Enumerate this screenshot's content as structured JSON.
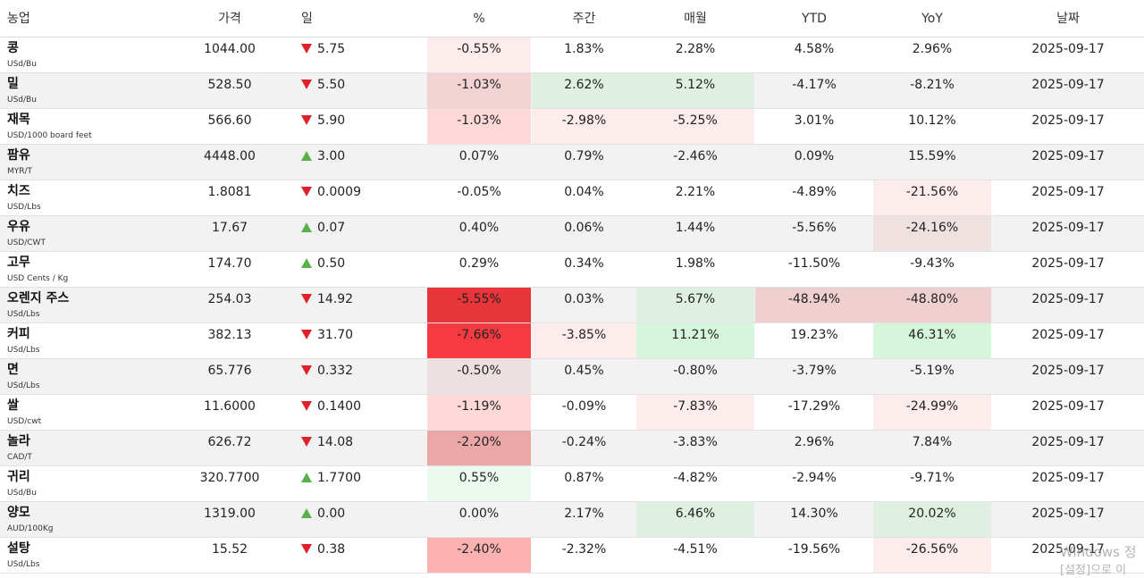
{
  "headers": {
    "name": "농업",
    "price": "가격",
    "day": "일",
    "pct": "%",
    "weekly": "주간",
    "monthly": "매월",
    "ytd": "YTD",
    "yoy": "YoY",
    "date": "날짜"
  },
  "rows": [
    {
      "name": "콩",
      "unit": "USd/Bu",
      "price": "1044.00",
      "dir": "down",
      "day": "5.75",
      "pct": "-0.55%",
      "weekly": "1.83%",
      "monthly": "2.28%",
      "ytd": "4.58%",
      "yoy": "2.96%",
      "date": "2025-09-17",
      "colors": {
        "pct": "#fdecec"
      }
    },
    {
      "name": "밀",
      "unit": "USd/Bu",
      "price": "528.50",
      "dir": "down",
      "day": "5.50",
      "pct": "-1.03%",
      "weekly": "2.62%",
      "monthly": "5.12%",
      "ytd": "-4.17%",
      "yoy": "-8.21%",
      "date": "2025-09-17",
      "colors": {
        "pct": "#f1d3d3",
        "weekly": "#dff0e2",
        "monthly": "#dff0e2"
      }
    },
    {
      "name": "재목",
      "unit": "USD/1000 board feet",
      "price": "566.60",
      "dir": "down",
      "day": "5.90",
      "pct": "-1.03%",
      "weekly": "-2.98%",
      "monthly": "-5.25%",
      "ytd": "3.01%",
      "yoy": "10.12%",
      "date": "2025-09-17",
      "colors": {
        "pct": "#fdd8d8",
        "weekly": "#fdecec",
        "monthly": "#fdecec"
      }
    },
    {
      "name": "팜유",
      "unit": "MYR/T",
      "price": "4448.00",
      "dir": "up",
      "day": "3.00",
      "pct": "0.07%",
      "weekly": "0.79%",
      "monthly": "-2.46%",
      "ytd": "0.09%",
      "yoy": "15.59%",
      "date": "2025-09-17",
      "colors": {}
    },
    {
      "name": "치즈",
      "unit": "USD/Lbs",
      "price": "1.8081",
      "dir": "down",
      "day": "0.0009",
      "pct": "-0.05%",
      "weekly": "0.04%",
      "monthly": "2.21%",
      "ytd": "-4.89%",
      "yoy": "-21.56%",
      "date": "2025-09-17",
      "colors": {
        "yoy": "#fdecec"
      }
    },
    {
      "name": "우유",
      "unit": "USD/CWT",
      "price": "17.67",
      "dir": "up",
      "day": "0.07",
      "pct": "0.40%",
      "weekly": "0.06%",
      "monthly": "1.44%",
      "ytd": "-5.56%",
      "yoy": "-24.16%",
      "date": "2025-09-17",
      "colors": {
        "yoy": "#f0e1e1"
      }
    },
    {
      "name": "고무",
      "unit": "USD Cents / Kg",
      "price": "174.70",
      "dir": "up",
      "day": "0.50",
      "pct": "0.29%",
      "weekly": "0.34%",
      "monthly": "1.98%",
      "ytd": "-11.50%",
      "yoy": "-9.43%",
      "date": "2025-09-17",
      "colors": {}
    },
    {
      "name": "오렌지 주스",
      "unit": "USd/Lbs",
      "price": "254.03",
      "dir": "down",
      "day": "14.92",
      "pct": "-5.55%",
      "weekly": "0.03%",
      "monthly": "5.67%",
      "ytd": "-48.94%",
      "yoy": "-48.80%",
      "date": "2025-09-17",
      "colors": {
        "pct": "#e8353a",
        "monthly": "#dff0e2",
        "ytd": "#efcfcf",
        "yoy": "#efcfcf"
      }
    },
    {
      "name": "커피",
      "unit": "USd/Lbs",
      "price": "382.13",
      "dir": "down",
      "day": "31.70",
      "pct": "-7.66%",
      "weekly": "-3.85%",
      "monthly": "11.21%",
      "ytd": "19.23%",
      "yoy": "46.31%",
      "date": "2025-09-17",
      "colors": {
        "pct": "#f53b40",
        "weekly": "#fdecec",
        "monthly": "#d6f6dc",
        "yoy": "#d6f6dc"
      }
    },
    {
      "name": "면",
      "unit": "USd/Lbs",
      "price": "65.776",
      "dir": "down",
      "day": "0.332",
      "pct": "-0.50%",
      "weekly": "0.45%",
      "monthly": "-0.80%",
      "ytd": "-3.79%",
      "yoy": "-5.19%",
      "date": "2025-09-17",
      "colors": {
        "pct": "#ede0e0"
      }
    },
    {
      "name": "쌀",
      "unit": "USD/cwt",
      "price": "11.6000",
      "dir": "down",
      "day": "0.1400",
      "pct": "-1.19%",
      "weekly": "-0.09%",
      "monthly": "-7.83%",
      "ytd": "-17.29%",
      "yoy": "-24.99%",
      "date": "2025-09-17",
      "colors": {
        "pct": "#fdd8d8",
        "monthly": "#fdecec",
        "yoy": "#fdecec"
      }
    },
    {
      "name": "놀라",
      "unit": "CAD/T",
      "price": "626.72",
      "dir": "down",
      "day": "14.08",
      "pct": "-2.20%",
      "weekly": "-0.24%",
      "monthly": "-3.83%",
      "ytd": "2.96%",
      "yoy": "7.84%",
      "date": "2025-09-17",
      "colors": {
        "pct": "#eba6a6"
      }
    },
    {
      "name": "귀리",
      "unit": "USd/Bu",
      "price": "320.7700",
      "dir": "up",
      "day": "1.7700",
      "pct": "0.55%",
      "weekly": "0.87%",
      "monthly": "-4.82%",
      "ytd": "-2.94%",
      "yoy": "-9.71%",
      "date": "2025-09-17",
      "colors": {
        "pct": "#ebf9ee"
      }
    },
    {
      "name": "양모",
      "unit": "AUD/100Kg",
      "price": "1319.00",
      "dir": "up",
      "day": "0.00",
      "pct": "0.00%",
      "weekly": "2.17%",
      "monthly": "6.46%",
      "ytd": "14.30%",
      "yoy": "20.02%",
      "date": "2025-09-17",
      "colors": {
        "monthly": "#dff0e2",
        "yoy": "#dff0e2"
      }
    },
    {
      "name": "설탕",
      "unit": "USd/Lbs",
      "price": "15.52",
      "dir": "down",
      "day": "0.38",
      "pct": "-2.40%",
      "weekly": "-2.32%",
      "monthly": "-4.51%",
      "ytd": "-19.56%",
      "yoy": "-26.56%",
      "date": "2025-09-17",
      "colors": {
        "pct": "#fdb2b2",
        "yoy": "#fdecec"
      }
    }
  ],
  "watermark": {
    "line1": "Windows 정",
    "line2": "[설정]으로 이"
  }
}
